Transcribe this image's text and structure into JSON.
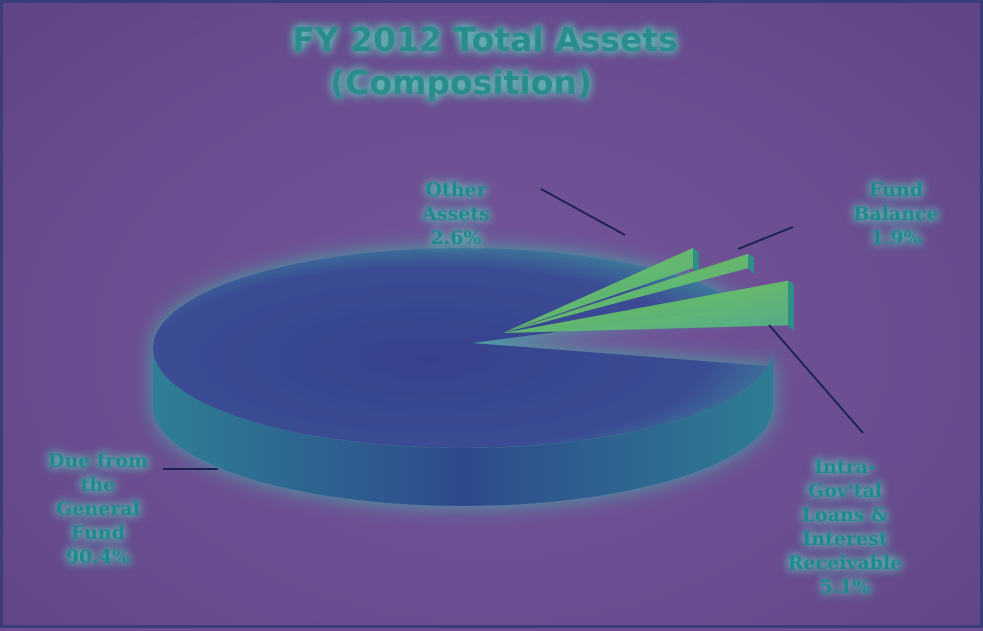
{
  "chart_data": {
    "type": "pie",
    "title": [
      "FY 2012 Total Assets",
      "(Composition)"
    ],
    "slices": [
      {
        "label": [
          "Due from",
          "the",
          "General",
          "Fund"
        ],
        "value": 90.4,
        "value_label": "90.4%"
      },
      {
        "label": [
          "Other",
          "Assets"
        ],
        "value": 2.6,
        "value_label": "2.6%"
      },
      {
        "label": [
          "Fund",
          "Balance"
        ],
        "value": 1.9,
        "value_label": "1.9%"
      },
      {
        "label": [
          "Intra-",
          "Gov'tal",
          "Loans &",
          "Interest",
          "Receivable"
        ],
        "value": 5.1,
        "value_label": "5.1%"
      }
    ],
    "legend": "none",
    "colors": {
      "background": "#6c4f92",
      "text": "#1f8a8f",
      "main_slice": "#3a4a93",
      "small_slices": "#8fd24a"
    }
  }
}
